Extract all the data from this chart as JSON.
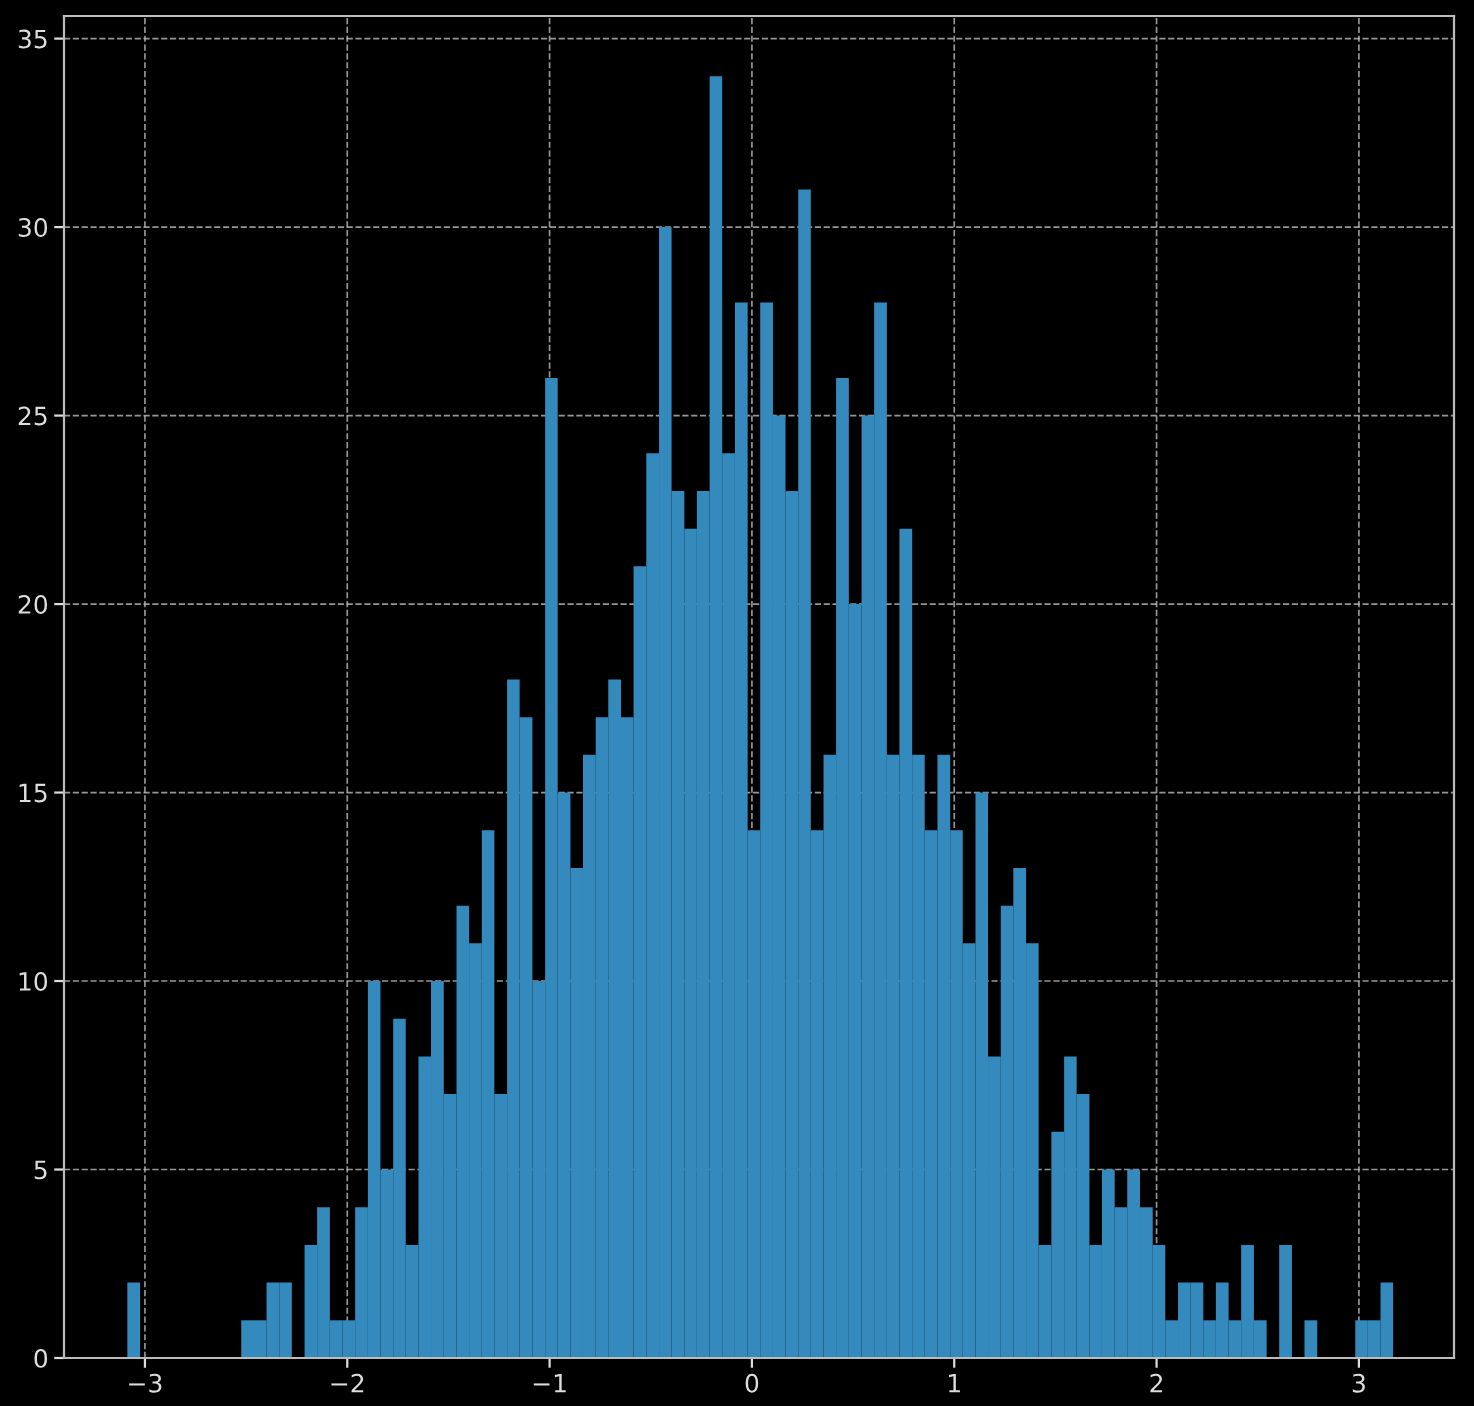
{
  "chart_data": {
    "type": "histogram",
    "color": "#348abd",
    "bins": [
      -3.087,
      -3.024,
      -2.962,
      -2.899,
      -2.837,
      -2.774,
      -2.712,
      -2.649,
      -2.587,
      -2.524,
      -2.461,
      -2.399,
      -2.336,
      -2.274,
      -2.211,
      -2.149,
      -2.086,
      -2.023,
      -1.961,
      -1.898,
      -1.836,
      -1.773,
      -1.711,
      -1.648,
      -1.586,
      -1.523,
      -1.46,
      -1.398,
      -1.335,
      -1.273,
      -1.21,
      -1.148,
      -1.085,
      -1.022,
      -0.96,
      -0.897,
      -0.835,
      -0.772,
      -0.71,
      -0.647,
      -0.585,
      -0.522,
      -0.459,
      -0.397,
      -0.334,
      -0.272,
      -0.209,
      -0.147,
      -0.084,
      -0.021,
      0.041,
      0.104,
      0.166,
      0.229,
      0.291,
      0.354,
      0.416,
      0.479,
      0.542,
      0.604,
      0.667,
      0.729,
      0.792,
      0.854,
      0.917,
      0.98,
      1.042,
      1.105,
      1.167,
      1.23,
      1.292,
      1.355,
      1.417,
      1.48,
      1.543,
      1.605,
      1.668,
      1.73,
      1.793,
      1.855,
      1.918,
      1.981,
      2.043,
      2.106,
      2.168,
      2.231,
      2.293,
      2.356,
      2.418,
      2.481,
      2.544,
      2.606,
      2.669,
      2.731,
      2.794,
      2.856,
      2.919,
      2.982,
      3.044,
      3.107,
      3.169
    ],
    "values": [
      2,
      0,
      0,
      0,
      0,
      0,
      0,
      0,
      0,
      1,
      1,
      2,
      2,
      0,
      3,
      4,
      1,
      1,
      4,
      10,
      5,
      9,
      3,
      8,
      10,
      7,
      12,
      11,
      14,
      7,
      18,
      17,
      10,
      26,
      15,
      13,
      16,
      17,
      18,
      17,
      21,
      24,
      30,
      23,
      22,
      23,
      34,
      24,
      28,
      14,
      28,
      25,
      23,
      31,
      14,
      16,
      26,
      20,
      25,
      28,
      16,
      22,
      16,
      14,
      16,
      14,
      11,
      15,
      8,
      12,
      13,
      11,
      3,
      6,
      8,
      7,
      3,
      5,
      4,
      5,
      4,
      3,
      1,
      2,
      2,
      1,
      2,
      1,
      3,
      1,
      0,
      3,
      0,
      1,
      0,
      0,
      0,
      1,
      1,
      2
    ],
    "xlim": [
      -3.4,
      3.47
    ],
    "xticks": [
      -3,
      -2,
      -1,
      0,
      1,
      2,
      3
    ],
    "ylim": [
      0,
      35.6
    ],
    "yticks": [
      0,
      5,
      10,
      15,
      20,
      25,
      30,
      35
    ],
    "grid": true
  }
}
